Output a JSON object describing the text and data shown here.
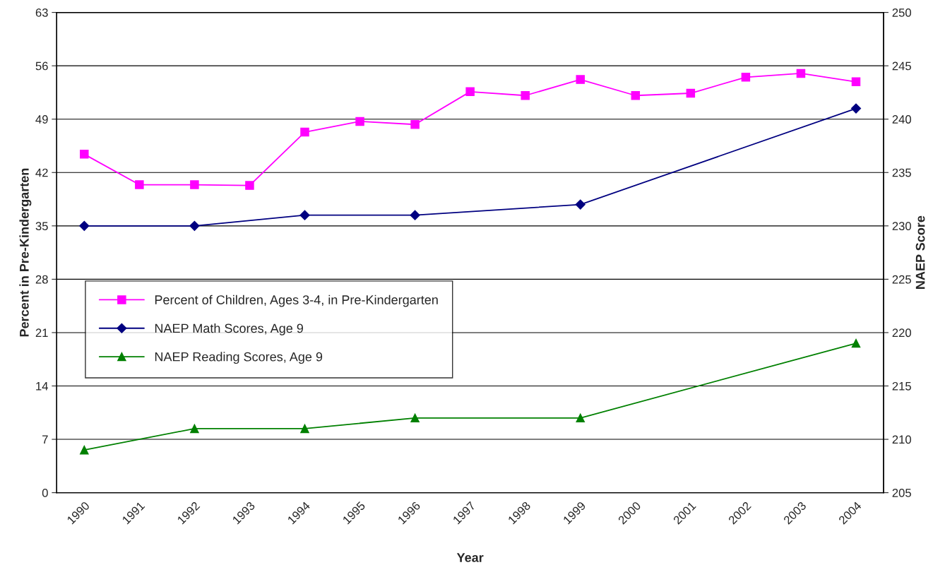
{
  "chart_data": {
    "type": "line",
    "xlabel": "Year",
    "ylabel": "Percent in Pre-Kindergarten",
    "y2label": "NAEP Score",
    "categories": [
      "1990",
      "1991",
      "1992",
      "1993",
      "1994",
      "1995",
      "1996",
      "1997",
      "1998",
      "1999",
      "2000",
      "2001",
      "2002",
      "2003",
      "2004"
    ],
    "series": [
      {
        "name": "Percent of Children, Ages 3-4, in Pre-Kindergarten",
        "color": "#ff00ff",
        "marker": "square",
        "values": [
          44.4,
          40.4,
          40.4,
          40.3,
          47.3,
          48.7,
          48.3,
          52.6,
          52.1,
          54.2,
          52.1,
          52.4,
          54.5,
          55.0,
          53.9
        ]
      },
      {
        "name": "NAEP Math Scores, Age 9",
        "color": "#000080",
        "marker": "diamond",
        "axis": "y2",
        "values": [
          230,
          null,
          230,
          null,
          231,
          null,
          231,
          null,
          null,
          232,
          null,
          null,
          null,
          null,
          241
        ]
      },
      {
        "name": "NAEP Reading Scores, Age 9",
        "color": "#008000",
        "marker": "triangle",
        "axis": "y2",
        "values": [
          209,
          null,
          211,
          null,
          211,
          null,
          212,
          null,
          null,
          212,
          null,
          null,
          null,
          null,
          219
        ]
      }
    ],
    "ylim": [
      0,
      63
    ],
    "yticks": [
      0,
      7,
      14,
      21,
      28,
      35,
      42,
      49,
      56,
      63
    ],
    "y2lim": [
      205,
      250
    ],
    "y2ticks": [
      205,
      210,
      215,
      220,
      225,
      230,
      235,
      240,
      245,
      250
    ],
    "grid": "y",
    "legend": "left"
  }
}
